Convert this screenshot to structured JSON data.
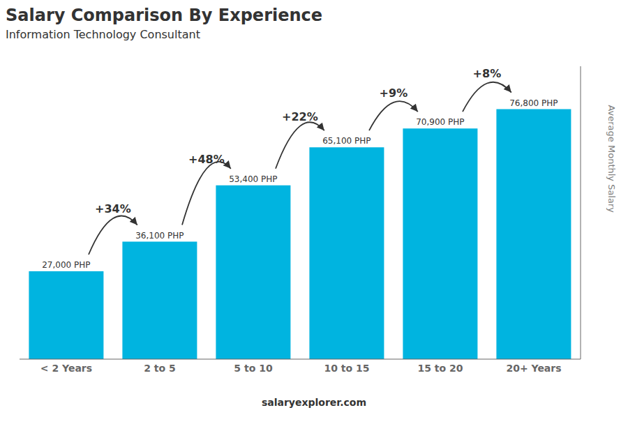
{
  "chart_data": {
    "type": "bar",
    "title": "Salary Comparison By Experience",
    "subtitle": "Information Technology Consultant",
    "categories": [
      "< 2 Years",
      "2 to 5",
      "5 to 10",
      "10 to 15",
      "15 to 20",
      "20+ Years"
    ],
    "values": [
      27000,
      36100,
      53400,
      65100,
      70900,
      76800
    ],
    "value_labels": [
      "27,000 PHP",
      "36,100 PHP",
      "53,400 PHP",
      "65,100 PHP",
      "70,900 PHP",
      "76,800 PHP"
    ],
    "data_labels": true,
    "color": "#00b4e0",
    "ylabel": "Average Monthly Salary",
    "ylim": [
      0,
      90000
    ],
    "yticks": [],
    "grid": false,
    "tick_labels": "x",
    "annotations": [
      {
        "text": "+34%",
        "from": "< 2 Years",
        "to": "2 to 5"
      },
      {
        "text": "+48%",
        "from": "2 to 5",
        "to": "5 to 10"
      },
      {
        "text": "+22%",
        "from": "5 to 10",
        "to": "10 to 15"
      },
      {
        "text": "+9%",
        "from": "10 to 15",
        "to": "15 to 20"
      },
      {
        "text": "+8%",
        "from": "15 to 20",
        "to": "20+ Years"
      },
      {
        "text": "salaryexplorer.com"
      }
    ]
  }
}
